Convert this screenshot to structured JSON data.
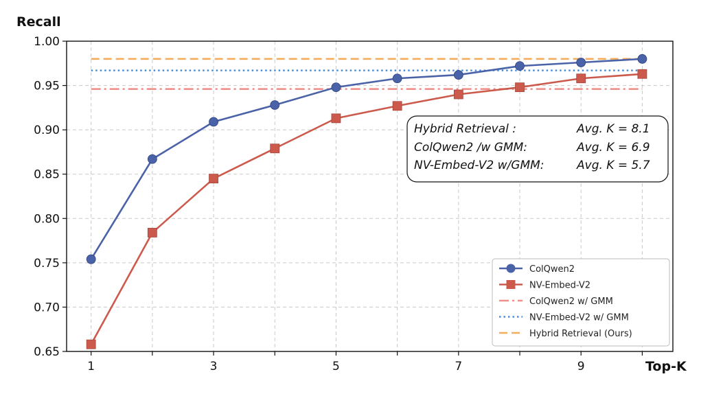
{
  "chart_data": {
    "type": "line",
    "title": "",
    "ylabel": "Recall",
    "xlabel": "Top-K",
    "xlim": [
      0.6,
      10.5
    ],
    "ylim": [
      0.65,
      1.0
    ],
    "xticks": [
      1,
      3,
      5,
      7,
      9
    ],
    "yticks": [
      0.65,
      0.7,
      0.75,
      0.8,
      0.85,
      0.9,
      0.95,
      1.0
    ],
    "ytick_labels": [
      "0.65",
      "0.70",
      "0.75",
      "0.80",
      "0.85",
      "0.90",
      "0.95",
      "1.00"
    ],
    "grid": true,
    "x": [
      1,
      2,
      3,
      4,
      5,
      6,
      7,
      8,
      9,
      10
    ],
    "series": [
      {
        "name": "ColQwen2",
        "color": "#4a62a8",
        "marker": "circle",
        "values": [
          0.754,
          0.867,
          0.909,
          0.928,
          0.948,
          0.958,
          0.962,
          0.972,
          0.976,
          0.98
        ]
      },
      {
        "name": "NV-Embed-V2",
        "color": "#cc5a4c",
        "marker": "square",
        "values": [
          0.658,
          0.784,
          0.845,
          0.879,
          0.913,
          0.927,
          0.94,
          0.948,
          0.958,
          0.963
        ]
      }
    ],
    "reference_lines": [
      {
        "name": "ColQwen2 w/ GMM",
        "value": 0.946,
        "color": "#f0908a",
        "style": "dashdot"
      },
      {
        "name": "NV-Embed-V2 w/ GMM",
        "value": 0.967,
        "color": "#4a8ed8",
        "style": "dotted"
      },
      {
        "name": "Hybrid Retrieval (Ours)",
        "value": 0.98,
        "color": "#f4ad5c",
        "style": "dashed"
      }
    ],
    "legend_position": "bottom-right",
    "annotation": {
      "rows": [
        {
          "method": "Hybrid Retrieval :",
          "avg": "Avg. K = 8.1"
        },
        {
          "method": "ColQwen2 /w GMM:",
          "avg": "Avg. K = 6.9"
        },
        {
          "method": "NV-Embed-V2 w/GMM:",
          "avg": "Avg. K = 5.7"
        }
      ]
    }
  }
}
